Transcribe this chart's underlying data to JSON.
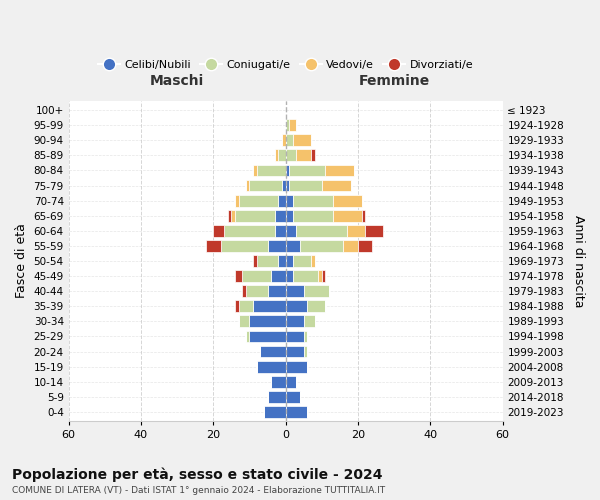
{
  "age_groups": [
    "0-4",
    "5-9",
    "10-14",
    "15-19",
    "20-24",
    "25-29",
    "30-34",
    "35-39",
    "40-44",
    "45-49",
    "50-54",
    "55-59",
    "60-64",
    "65-69",
    "70-74",
    "75-79",
    "80-84",
    "85-89",
    "90-94",
    "95-99",
    "100+"
  ],
  "birth_years": [
    "2019-2023",
    "2014-2018",
    "2009-2013",
    "2004-2008",
    "1999-2003",
    "1994-1998",
    "1989-1993",
    "1984-1988",
    "1979-1983",
    "1974-1978",
    "1969-1973",
    "1964-1968",
    "1959-1963",
    "1954-1958",
    "1949-1953",
    "1944-1948",
    "1939-1943",
    "1934-1938",
    "1929-1933",
    "1924-1928",
    "≤ 1923"
  ],
  "male": {
    "celibi": [
      6,
      5,
      4,
      8,
      7,
      10,
      10,
      9,
      5,
      4,
      2,
      5,
      3,
      3,
      2,
      1,
      0,
      0,
      0,
      0,
      0
    ],
    "coniugati": [
      0,
      0,
      0,
      0,
      0,
      1,
      3,
      4,
      6,
      8,
      6,
      13,
      14,
      11,
      11,
      9,
      8,
      2,
      0,
      0,
      0
    ],
    "vedovi": [
      0,
      0,
      0,
      0,
      0,
      0,
      0,
      0,
      0,
      0,
      0,
      0,
      0,
      1,
      1,
      1,
      1,
      1,
      1,
      0,
      0
    ],
    "divorziati": [
      0,
      0,
      0,
      0,
      0,
      0,
      0,
      1,
      1,
      2,
      1,
      4,
      3,
      1,
      0,
      0,
      0,
      0,
      0,
      0,
      0
    ]
  },
  "female": {
    "nubili": [
      6,
      4,
      3,
      6,
      5,
      5,
      5,
      6,
      5,
      2,
      2,
      4,
      3,
      2,
      2,
      1,
      1,
      0,
      0,
      0,
      0
    ],
    "coniugate": [
      0,
      0,
      0,
      0,
      1,
      1,
      3,
      5,
      7,
      7,
      5,
      12,
      14,
      11,
      11,
      9,
      10,
      3,
      2,
      1,
      0
    ],
    "vedove": [
      0,
      0,
      0,
      0,
      0,
      0,
      0,
      0,
      0,
      1,
      1,
      4,
      5,
      8,
      8,
      8,
      8,
      4,
      5,
      2,
      0
    ],
    "divorziate": [
      0,
      0,
      0,
      0,
      0,
      0,
      0,
      0,
      0,
      1,
      0,
      4,
      5,
      1,
      0,
      0,
      0,
      1,
      0,
      0,
      0
    ]
  },
  "colors": {
    "celibi": "#4472C4",
    "coniugati": "#c5d9a0",
    "vedovi": "#f5c26b",
    "divorziati": "#c0392b"
  },
  "xlim": 60,
  "title": "Popolazione per età, sesso e stato civile - 2024",
  "subtitle": "COMUNE DI LATERA (VT) - Dati ISTAT 1° gennaio 2024 - Elaborazione TUTTITALIA.IT",
  "ylabel_left": "Fasce di età",
  "ylabel_right": "Anni di nascita",
  "xlabel_maschi": "Maschi",
  "xlabel_femmine": "Femmine",
  "bg_color": "#f0f0f0",
  "plot_bg": "#ffffff"
}
